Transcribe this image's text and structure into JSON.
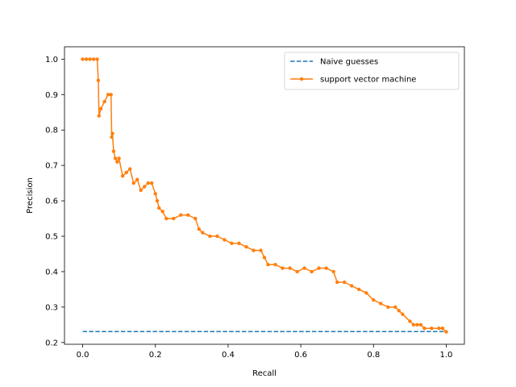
{
  "chart_data": {
    "type": "line",
    "xlabel": "Recall",
    "ylabel": "Precision",
    "xlim": [
      -0.05,
      1.05
    ],
    "ylim": [
      0.195,
      1.035
    ],
    "xticks": [
      0.0,
      0.2,
      0.4,
      0.6,
      0.8,
      1.0
    ],
    "xtick_labels": [
      "0.0",
      "0.2",
      "0.4",
      "0.6",
      "0.8",
      "1.0"
    ],
    "yticks": [
      0.2,
      0.3,
      0.4,
      0.5,
      0.6,
      0.7,
      0.8,
      0.9,
      1.0
    ],
    "ytick_labels": [
      "0.2",
      "0.3",
      "0.4",
      "0.5",
      "0.6",
      "0.7",
      "0.8",
      "0.9",
      "1.0"
    ],
    "grid": false,
    "legend": "top-right",
    "series": [
      {
        "name": "Naive guesses",
        "style": "dashed",
        "color": "#1f77b4",
        "x": [
          0.0,
          1.0
        ],
        "y": [
          0.231,
          0.231
        ]
      },
      {
        "name": "support vector machine",
        "style": "solid-dots",
        "color": "#ff7f0e",
        "x": [
          0.0,
          0.01,
          0.02,
          0.03,
          0.04,
          0.043,
          0.045,
          0.05,
          0.06,
          0.07,
          0.078,
          0.08,
          0.082,
          0.085,
          0.09,
          0.095,
          0.1,
          0.11,
          0.12,
          0.13,
          0.14,
          0.15,
          0.16,
          0.17,
          0.18,
          0.19,
          0.2,
          0.205,
          0.21,
          0.22,
          0.23,
          0.25,
          0.27,
          0.29,
          0.31,
          0.32,
          0.33,
          0.35,
          0.37,
          0.39,
          0.41,
          0.43,
          0.45,
          0.47,
          0.49,
          0.5,
          0.51,
          0.53,
          0.55,
          0.57,
          0.59,
          0.61,
          0.63,
          0.65,
          0.67,
          0.69,
          0.7,
          0.72,
          0.74,
          0.76,
          0.78,
          0.8,
          0.82,
          0.84,
          0.86,
          0.87,
          0.88,
          0.9,
          0.91,
          0.92,
          0.93,
          0.94,
          0.96,
          0.98,
          0.99,
          1.0
        ],
        "y": [
          1.0,
          1.0,
          1.0,
          1.0,
          1.0,
          0.94,
          0.84,
          0.86,
          0.88,
          0.9,
          0.9,
          0.78,
          0.79,
          0.74,
          0.72,
          0.71,
          0.72,
          0.67,
          0.68,
          0.69,
          0.65,
          0.66,
          0.63,
          0.64,
          0.65,
          0.65,
          0.62,
          0.6,
          0.58,
          0.57,
          0.55,
          0.55,
          0.56,
          0.56,
          0.55,
          0.52,
          0.51,
          0.5,
          0.5,
          0.49,
          0.48,
          0.48,
          0.47,
          0.46,
          0.46,
          0.44,
          0.42,
          0.42,
          0.41,
          0.41,
          0.4,
          0.41,
          0.4,
          0.41,
          0.41,
          0.4,
          0.37,
          0.37,
          0.36,
          0.35,
          0.34,
          0.32,
          0.31,
          0.3,
          0.3,
          0.29,
          0.28,
          0.26,
          0.25,
          0.25,
          0.25,
          0.24,
          0.24,
          0.24,
          0.24,
          0.23
        ]
      }
    ]
  }
}
